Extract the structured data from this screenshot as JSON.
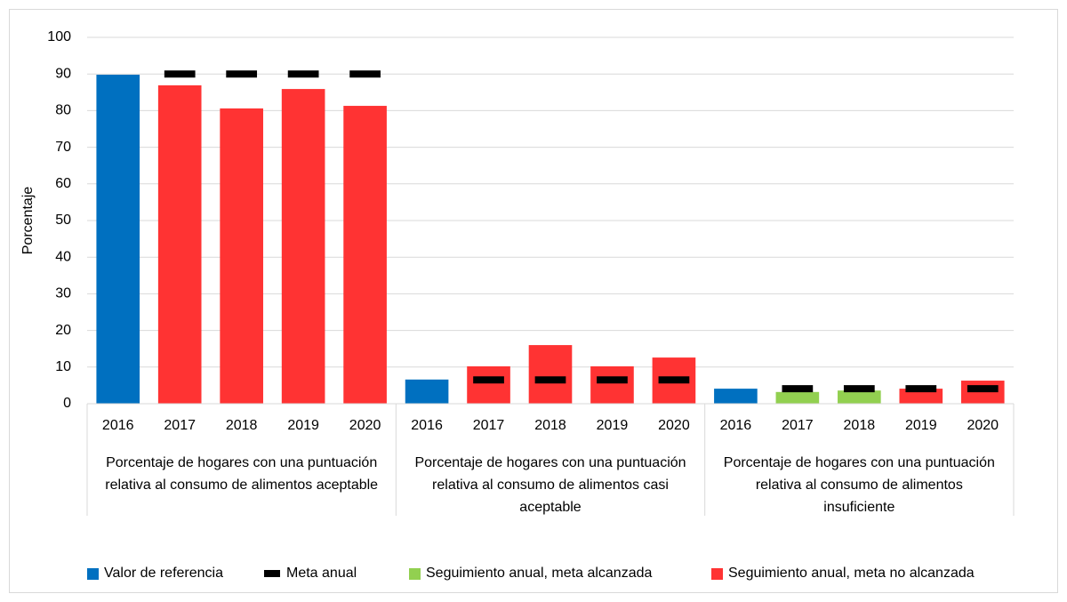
{
  "chart_data": {
    "type": "bar",
    "y_label": "Porcentaje",
    "categories": [
      "2016",
      "2017",
      "2018",
      "2019",
      "2020",
      "2016",
      "2017",
      "2018",
      "2019",
      "2020",
      "2016",
      "2017",
      "2018",
      "2019",
      "2020"
    ],
    "groups": [
      "Porcentaje de hogares con una puntuación relativa al consumo de alimentos aceptable",
      "Porcentaje de hogares con una puntuación relativa al consumo de alimentos casi aceptable",
      "Porcentaje de hogares con una puntuación relativa al consumo de alimentos insuficiente"
    ],
    "series": [
      {
        "name": "Valor de referencia",
        "color": "#0070c0",
        "kind": "bar",
        "values": [
          89.8,
          null,
          null,
          null,
          null,
          6.6,
          null,
          null,
          null,
          null,
          4.1,
          null,
          null,
          null,
          null
        ]
      },
      {
        "name": "Meta anual",
        "color": "#000000",
        "kind": "dash",
        "values": [
          null,
          90,
          90,
          90,
          90,
          null,
          6.5,
          6.5,
          6.5,
          6.5,
          null,
          4.1,
          4.1,
          4.1,
          4.1
        ]
      },
      {
        "name": "Seguimiento anual, meta alcanzada",
        "color": "#92d050",
        "kind": "bar",
        "values": [
          null,
          null,
          null,
          null,
          null,
          null,
          null,
          null,
          null,
          null,
          null,
          3.2,
          3.6,
          null,
          null
        ]
      },
      {
        "name": "Seguimiento anual, meta no alcanzada",
        "color": "#ff3333",
        "kind": "bar",
        "values": [
          null,
          86.9,
          80.6,
          85.9,
          81.3,
          null,
          10.2,
          16.0,
          10.2,
          12.6,
          null,
          null,
          null,
          4.1,
          6.3
        ]
      }
    ],
    "ylim": [
      0,
      100
    ],
    "yticks": [
      0,
      10,
      20,
      30,
      40,
      50,
      60,
      70,
      80,
      90,
      100
    ],
    "grid": true,
    "legend": "bottom"
  }
}
